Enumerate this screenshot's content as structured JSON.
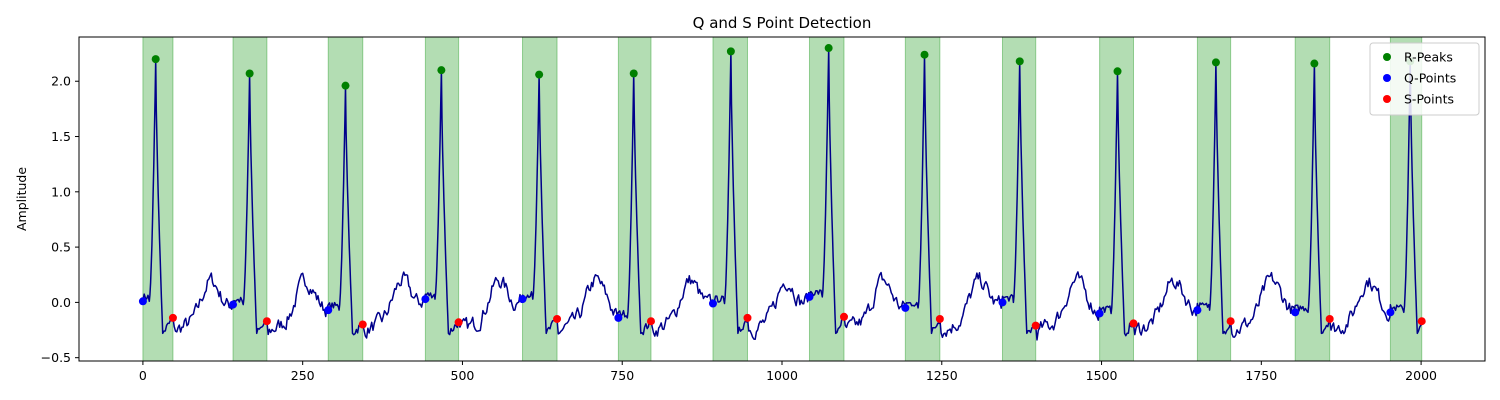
{
  "chart_data": {
    "type": "line",
    "title": "Q and S Point Detection",
    "xlabel": "",
    "ylabel": "Amplitude",
    "xlim": [
      -100,
      2100
    ],
    "ylim": [
      -0.53,
      2.4
    ],
    "xticks": [
      0,
      250,
      500,
      750,
      1000,
      1250,
      1500,
      1750,
      2000
    ],
    "yticks": [
      -0.5,
      0.0,
      0.5,
      1.0,
      1.5,
      2.0
    ],
    "xtick_labels": [
      "0",
      "250",
      "500",
      "750",
      "1000",
      "1250",
      "1500",
      "1750",
      "2000"
    ],
    "ytick_labels": [
      "−0.5",
      "0.0",
      "0.5",
      "1.0",
      "1.5",
      "2.0"
    ],
    "grid": false,
    "legend_position": "top-right",
    "colors": {
      "signal": "#00008b",
      "r_peaks": "#008000",
      "q_points": "#0000ff",
      "s_points": "#ff0000",
      "shade": "#2ca02c"
    },
    "legend": [
      {
        "label": "R-Peaks",
        "color": "#008000"
      },
      {
        "label": "Q-Points",
        "color": "#0000ff"
      },
      {
        "label": "S-Points",
        "color": "#ff0000"
      }
    ],
    "shaded_regions": [
      [
        0,
        47
      ],
      [
        141,
        194
      ],
      [
        290,
        344
      ],
      [
        442,
        494
      ],
      [
        594,
        648
      ],
      [
        744,
        795
      ],
      [
        892,
        946
      ],
      [
        1043,
        1097
      ],
      [
        1193,
        1247
      ],
      [
        1345,
        1397
      ],
      [
        1497,
        1550
      ],
      [
        1650,
        1702
      ],
      [
        1803,
        1857
      ],
      [
        1952,
        2001
      ]
    ],
    "r_peaks": {
      "x": [
        20,
        167,
        317,
        467,
        620,
        768,
        920,
        1073,
        1223,
        1372,
        1525,
        1679,
        1833,
        1983
      ],
      "y": [
        2.2,
        2.07,
        1.96,
        2.1,
        2.06,
        2.07,
        2.27,
        2.3,
        2.24,
        2.18,
        2.09,
        2.17,
        2.16,
        2.18
      ]
    },
    "q_points": {
      "x": [
        0,
        141,
        290,
        442,
        594,
        744,
        892,
        1043,
        1193,
        1345,
        1497,
        1650,
        1803,
        1952
      ],
      "y": [
        0.01,
        -0.02,
        -0.07,
        0.03,
        0.03,
        -0.14,
        -0.01,
        0.05,
        -0.05,
        0.0,
        -0.1,
        -0.07,
        -0.09,
        -0.09
      ]
    },
    "s_points": {
      "x": [
        47,
        194,
        344,
        494,
        648,
        795,
        946,
        1097,
        1247,
        1397,
        1550,
        1702,
        1857,
        2001
      ],
      "y": [
        -0.14,
        -0.17,
        -0.2,
        -0.18,
        -0.15,
        -0.17,
        -0.14,
        -0.13,
        -0.15,
        -0.21,
        -0.19,
        -0.17,
        -0.15,
        -0.17
      ]
    }
  }
}
